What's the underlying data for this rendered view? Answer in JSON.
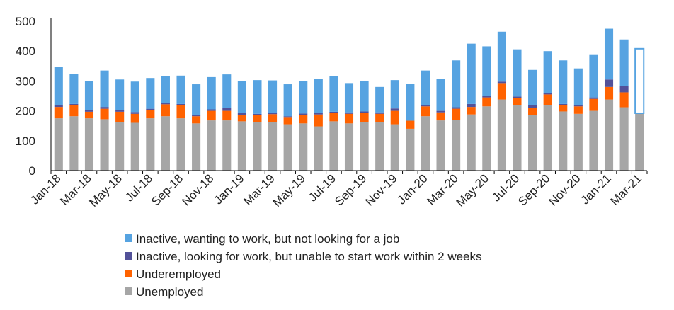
{
  "chart_data": {
    "type": "bar",
    "stacked": true,
    "title": "",
    "xlabel": "",
    "ylabel": "",
    "ylim": [
      0,
      500
    ],
    "yticks": [
      0,
      100,
      200,
      300,
      400,
      500
    ],
    "grid": false,
    "legend_position": "bottom-left",
    "categories": [
      "Jan-18",
      "Feb-18",
      "Mar-18",
      "Apr-18",
      "May-18",
      "Jun-18",
      "Jul-18",
      "Aug-18",
      "Sep-18",
      "Oct-18",
      "Nov-18",
      "Dec-18",
      "Jan-19",
      "Feb-19",
      "Mar-19",
      "Apr-19",
      "May-19",
      "Jun-19",
      "Jul-19",
      "Aug-19",
      "Sep-19",
      "Oct-19",
      "Nov-19",
      "Dec-19",
      "Jan-20",
      "Feb-20",
      "Mar-20",
      "Apr-20",
      "May-20",
      "Jun-20",
      "Jul-20",
      "Aug-20",
      "Sep-20",
      "Oct-20",
      "Nov-20",
      "Dec-20",
      "Jan-21",
      "Feb-21",
      "Mar-21"
    ],
    "xtick_labels": [
      "Jan-18",
      "Mar-18",
      "May-18",
      "Jul-18",
      "Sep-18",
      "Nov-18",
      "Jan-19",
      "Mar-19",
      "May-19",
      "Jul-19",
      "Sep-19",
      "Nov-19",
      "Jan-20",
      "Mar-20",
      "May-20",
      "Jul-20",
      "Sep-20",
      "Nov-20",
      "Jan-21",
      "Mar-21"
    ],
    "series": [
      {
        "name": "Unemployed",
        "color": "#a6a6a6",
        "values": [
          175,
          182,
          175,
          172,
          162,
          160,
          175,
          182,
          175,
          158,
          168,
          168,
          165,
          162,
          162,
          155,
          158,
          148,
          165,
          158,
          163,
          162,
          155,
          140,
          182,
          168,
          170,
          188,
          215,
          238,
          218,
          185,
          220,
          198,
          190,
          200,
          238,
          212,
          192
        ]
      },
      {
        "name": "Underemployed",
        "color": "#ff6200",
        "values": [
          38,
          36,
          22,
          35,
          35,
          30,
          27,
          40,
          43,
          24,
          32,
          32,
          22,
          23,
          27,
          22,
          28,
          40,
          27,
          32,
          30,
          28,
          45,
          27,
          33,
          27,
          37,
          25,
          30,
          55,
          25,
          25,
          35,
          20,
          25,
          40,
          42,
          50,
          0
        ]
      },
      {
        "name": "Inactive, looking for work, but unable to start work within 2 weeks",
        "color": "#525199",
        "values": [
          5,
          5,
          5,
          6,
          5,
          6,
          5,
          5,
          5,
          5,
          5,
          10,
          5,
          5,
          5,
          5,
          5,
          5,
          5,
          5,
          5,
          5,
          8,
          0,
          5,
          5,
          5,
          10,
          5,
          5,
          5,
          10,
          5,
          5,
          5,
          5,
          25,
          20,
          0
        ]
      },
      {
        "name": "Inactive, wanting to work, but not looking for a job",
        "color": "#56a3e1",
        "values": [
          130,
          100,
          98,
          122,
          103,
          102,
          103,
          90,
          95,
          102,
          108,
          112,
          108,
          113,
          108,
          107,
          108,
          113,
          120,
          98,
          103,
          85,
          95,
          123,
          115,
          108,
          157,
          202,
          166,
          167,
          158,
          117,
          140,
          146,
          122,
          142,
          170,
          157,
          0
        ]
      }
    ],
    "forecast_outline": {
      "category": "Mar-21",
      "from": 192,
      "to": 408,
      "color": "#56a3e1"
    }
  }
}
